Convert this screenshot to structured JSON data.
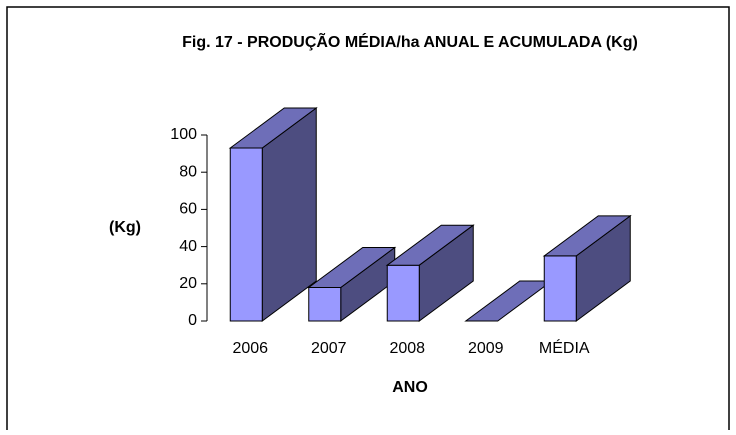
{
  "chart_data": {
    "type": "bar3d",
    "title": "Fig. 17 - PRODUÇÃO MÉDIA/ha ANUAL E ACUMULADA (Kg)",
    "y_label": "(Kg)",
    "x_label": "ANO",
    "categories": [
      "2006",
      "2007",
      "2008",
      "2009",
      "MÉDIA"
    ],
    "values": [
      93,
      18,
      30,
      0,
      35
    ],
    "color": "#9999ff",
    "ylim": [
      0,
      100
    ],
    "yticks": [
      0,
      20,
      40,
      60,
      80,
      100
    ]
  }
}
